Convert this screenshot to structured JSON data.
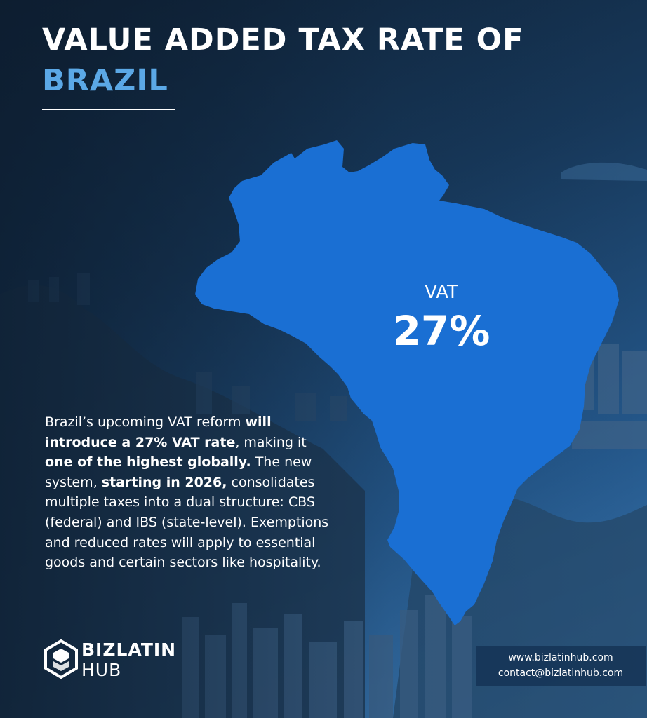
{
  "title": {
    "line1": "VALUE ADDED TAX RATE OF",
    "line2": "BRAZIL"
  },
  "map": {
    "country": "Brazil",
    "vat_label": "VAT",
    "vat_value": "27%"
  },
  "description": {
    "p1": "Brazil’s upcoming VAT reform ",
    "b1": "will introduce a 27% VAT rate",
    "p2": ", making it ",
    "b2": "one of the highest globally.",
    "p3": " The new system, ",
    "b3": "starting in 2026,",
    "p4": " consolidates multiple taxes into a dual structure: CBS (federal) and IBS (state-level). Exemptions and reduced rates will apply to essential goods and certain sectors like hospitality."
  },
  "logo": {
    "word1": "BIZLATIN",
    "word2": "HUB",
    "icon": "bizlatinhub-logo-icon"
  },
  "contact": {
    "website": "www.bizlatinhub.com",
    "email": "contact@bizlatinhub.com"
  },
  "colors": {
    "accent": "#5ba8e6",
    "map_fill": "#1a6fd3",
    "background_dark": "#0f2237",
    "background_light": "#3c7ab4",
    "text": "#ffffff"
  }
}
